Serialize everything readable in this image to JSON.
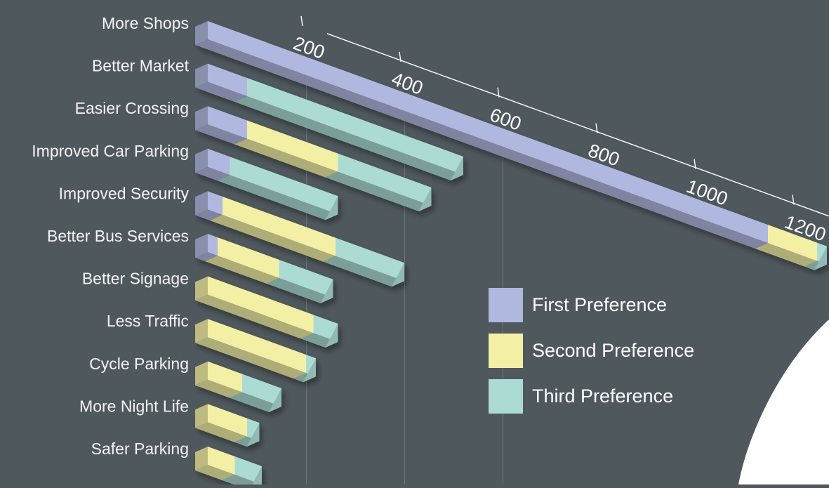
{
  "chart_data": {
    "type": "bar",
    "orientation": "horizontal-stacked-3d",
    "categories": [
      "More Shops",
      "Better Market",
      "Easier Crossing",
      "Improved Car Parking",
      "Improved Security",
      "Better Bus Services",
      "Better Signage",
      "Less Traffic",
      "Cycle Parking",
      "More Night Life",
      "Safer Parking"
    ],
    "series": [
      {
        "name": "First Preference",
        "color": "#b0b8df",
        "values": [
          1140,
          80,
          80,
          45,
          30,
          20,
          0,
          0,
          0,
          0,
          0
        ]
      },
      {
        "name": "Second Preference",
        "color": "#f3f0a5",
        "values": [
          100,
          0,
          185,
          0,
          230,
          125,
          215,
          200,
          70,
          80,
          55
        ]
      },
      {
        "name": "Third Preference",
        "color": "#acdbd4",
        "values": [
          20,
          440,
          190,
          220,
          140,
          110,
          50,
          20,
          80,
          25,
          55
        ]
      }
    ],
    "axis": {
      "ticks": [
        200,
        400,
        600,
        800,
        1000,
        1200
      ],
      "range": [
        0,
        1200
      ]
    },
    "legend_position": "right"
  }
}
